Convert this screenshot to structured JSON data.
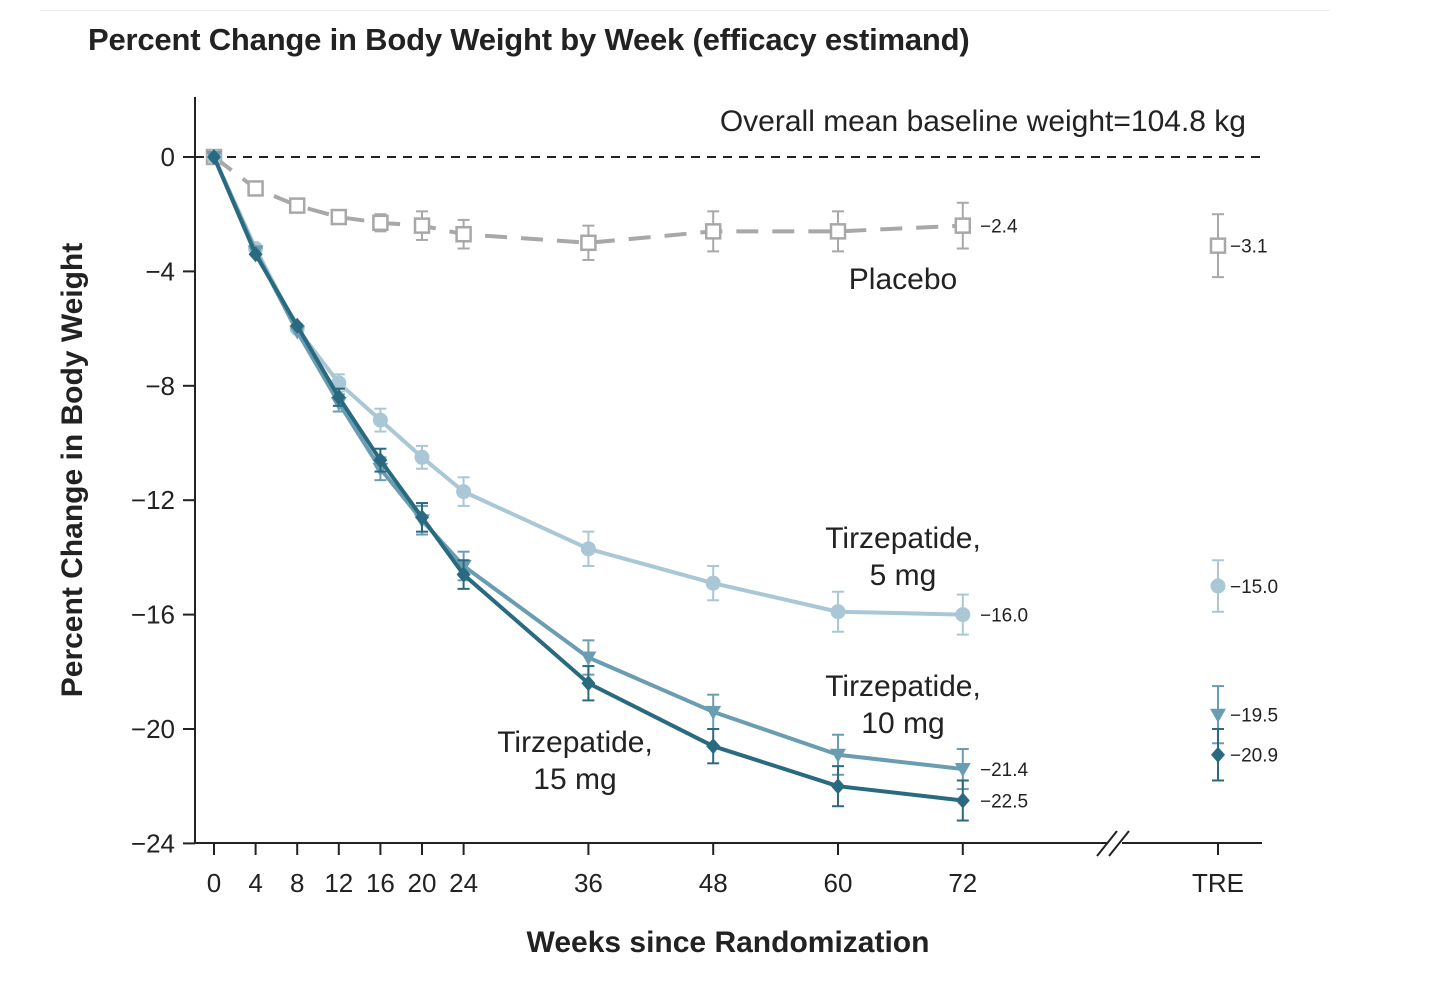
{
  "chart_data": {
    "type": "line",
    "title": "Percent Change in Body Weight by Week (efficacy estimand)",
    "xlabel": "Weeks since Randomization",
    "ylabel": "Percent Change in Body Weight",
    "annotation": "Overall mean baseline weight=104.8 kg",
    "ylim": [
      -24,
      0
    ],
    "yticks": [
      0,
      -4,
      -8,
      -12,
      -16,
      -20,
      -24
    ],
    "ytick_labels": [
      "0",
      "−4",
      "−8",
      "−12",
      "−16",
      "−20",
      "−24"
    ],
    "xticks": [
      0,
      4,
      8,
      12,
      16,
      20,
      24,
      36,
      48,
      60,
      72
    ],
    "tre_label": "TRE",
    "grid": false,
    "series": [
      {
        "name_lines": [
          "Placebo"
        ],
        "color": "#a8a8a8",
        "marker": "square-open",
        "dashed": true,
        "x": [
          0,
          4,
          8,
          12,
          16,
          20,
          24,
          36,
          48,
          60,
          72
        ],
        "y": [
          0,
          -1.1,
          -1.7,
          -2.1,
          -2.3,
          -2.4,
          -2.7,
          -3.0,
          -2.6,
          -2.6,
          -2.4
        ],
        "err": [
          0,
          0,
          0,
          0,
          0.3,
          0.5,
          0.5,
          0.6,
          0.7,
          0.7,
          0.8
        ],
        "end_label": "−2.4",
        "tre": -3.1,
        "tre_err": 1.1,
        "tre_label": "−3.1"
      },
      {
        "name_lines": [
          "Tirzepatide,",
          "5 mg"
        ],
        "color": "#a9c7d4",
        "marker": "circle",
        "dashed": false,
        "x": [
          0,
          4,
          8,
          12,
          16,
          20,
          24,
          36,
          48,
          60,
          72
        ],
        "y": [
          0,
          -3.2,
          -6.0,
          -7.9,
          -9.2,
          -10.5,
          -11.7,
          -13.7,
          -14.9,
          -15.9,
          -16.0
        ],
        "err": [
          0,
          0,
          0,
          0.3,
          0.4,
          0.4,
          0.5,
          0.6,
          0.6,
          0.7,
          0.7
        ],
        "end_label": "−16.0",
        "tre": -15.0,
        "tre_err": 0.9,
        "tre_label": "−15.0"
      },
      {
        "name_lines": [
          "Tirzepatide,",
          "10 mg"
        ],
        "color": "#6a9db1",
        "marker": "triangle-down",
        "dashed": false,
        "x": [
          0,
          4,
          8,
          12,
          16,
          20,
          24,
          36,
          48,
          60,
          72
        ],
        "y": [
          0,
          -3.3,
          -6.1,
          -8.6,
          -10.9,
          -12.7,
          -14.3,
          -17.5,
          -19.4,
          -20.9,
          -21.4
        ],
        "err": [
          0,
          0,
          0,
          0.3,
          0.4,
          0.5,
          0.5,
          0.6,
          0.6,
          0.7,
          0.7
        ],
        "end_label": "−21.4",
        "tre": -19.5,
        "tre_err": 1.0,
        "tre_label": "−19.5"
      },
      {
        "name_lines": [
          "Tirzepatide,",
          "15 mg"
        ],
        "color": "#2a6a80",
        "marker": "diamond",
        "dashed": false,
        "x": [
          0,
          4,
          8,
          12,
          16,
          20,
          24,
          36,
          48,
          60,
          72
        ],
        "y": [
          0,
          -3.4,
          -5.9,
          -8.4,
          -10.6,
          -12.6,
          -14.6,
          -18.4,
          -20.6,
          -22.0,
          -22.5
        ],
        "err": [
          0,
          0,
          0,
          0.3,
          0.4,
          0.5,
          0.5,
          0.6,
          0.6,
          0.7,
          0.7
        ],
        "end_label": "−22.5",
        "tre": -20.9,
        "tre_err": 0.9,
        "tre_label": "−20.9"
      }
    ]
  }
}
